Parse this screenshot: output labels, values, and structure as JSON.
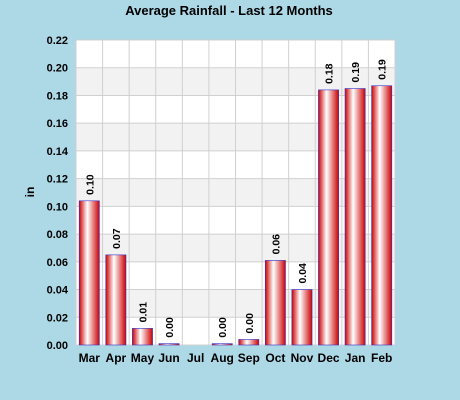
{
  "chart_data": {
    "type": "bar",
    "title": "Average Rainfall - Last 12 Months",
    "xlabel": "",
    "ylabel": "in",
    "categories": [
      "Mar",
      "Apr",
      "May",
      "Jun",
      "Jul",
      "Aug",
      "Sep",
      "Oct",
      "Nov",
      "Dec",
      "Jan",
      "Feb"
    ],
    "values": [
      0.104,
      0.065,
      0.012,
      0.001,
      0.0,
      0.001,
      0.004,
      0.061,
      0.04,
      0.184,
      0.185,
      0.187
    ],
    "value_labels": [
      "0.10",
      "0.07",
      "0.01",
      "0.00",
      "",
      "0.00",
      "0.00",
      "0.06",
      "0.04",
      "0.18",
      "0.19",
      "0.19"
    ],
    "ylim": [
      0,
      0.22
    ],
    "yticks": [
      0.0,
      0.02,
      0.04,
      0.06,
      0.08,
      0.1,
      0.12,
      0.14,
      0.16,
      0.18,
      0.2,
      0.22
    ],
    "ytick_labels": [
      "0.00",
      "0.02",
      "0.04",
      "0.06",
      "0.08",
      "0.10",
      "0.12",
      "0.14",
      "0.16",
      "0.18",
      "0.20",
      "0.22"
    ],
    "grid": true,
    "legend": "none",
    "colors": {
      "background": "#add8e6",
      "plot_background": "#ffffff",
      "band_alt": "#f2f2f2",
      "bar_edge": "#cc0000",
      "bar_highlight": "#ffffff",
      "bar_outline": "#3333cc",
      "grid": "#d0d0d0"
    }
  }
}
